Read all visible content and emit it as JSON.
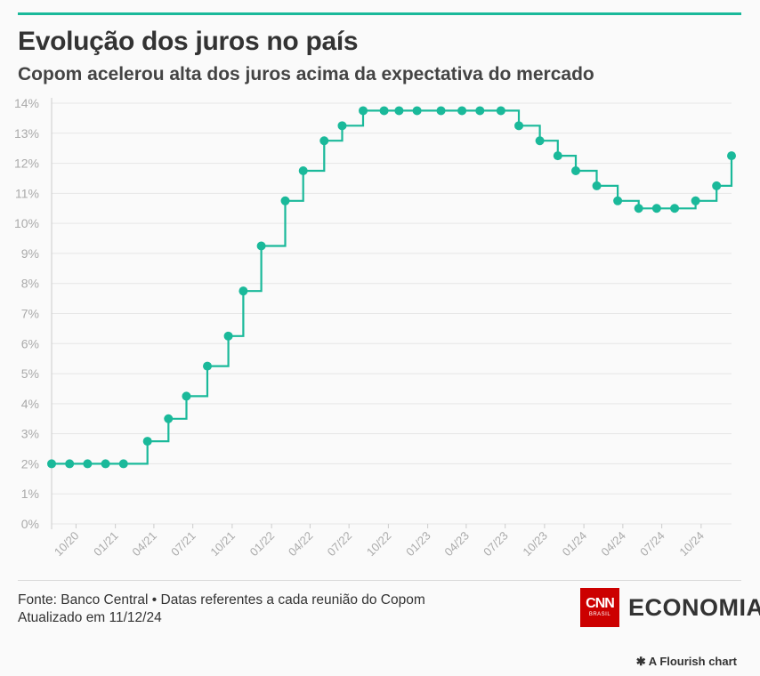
{
  "header": {
    "title": "Evolução dos juros no país",
    "subtitle": "Copom acelerou alta dos juros acima da expectativa do mercado"
  },
  "footer": {
    "source": "Fonte: Banco Central • Datas referentes a cada reunião do Copom",
    "updated": "Atualizado em 11/12/24",
    "brand_cnn": "CNN",
    "brand_cnn_sub": "BRASIL",
    "brand_name": "ECONOMIA",
    "flourish_label": "A Flourish chart"
  },
  "colors": {
    "line": "#1ab99a",
    "grid": "#e6e6e6",
    "axis_text": "#aaaaaa",
    "cnn_red": "#cc0000"
  },
  "chart_data": {
    "type": "line",
    "interpolation": "step-after",
    "x_axis": {
      "type": "date",
      "range": [
        "2020-08-05",
        "2024-12-11"
      ],
      "ticks": [
        {
          "date": "2020-10-01",
          "label": "10/20"
        },
        {
          "date": "2021-01-01",
          "label": "01/21"
        },
        {
          "date": "2021-04-01",
          "label": "04/21"
        },
        {
          "date": "2021-07-01",
          "label": "07/21"
        },
        {
          "date": "2021-10-01",
          "label": "10/21"
        },
        {
          "date": "2022-01-01",
          "label": "01/22"
        },
        {
          "date": "2022-04-01",
          "label": "04/22"
        },
        {
          "date": "2022-07-01",
          "label": "07/22"
        },
        {
          "date": "2022-10-01",
          "label": "10/22"
        },
        {
          "date": "2023-01-01",
          "label": "01/23"
        },
        {
          "date": "2023-04-01",
          "label": "04/23"
        },
        {
          "date": "2023-07-01",
          "label": "07/23"
        },
        {
          "date": "2023-10-01",
          "label": "10/23"
        },
        {
          "date": "2024-01-01",
          "label": "01/24"
        },
        {
          "date": "2024-04-01",
          "label": "04/24"
        },
        {
          "date": "2024-07-01",
          "label": "07/24"
        },
        {
          "date": "2024-10-01",
          "label": "10/24"
        }
      ]
    },
    "y_axis": {
      "range": [
        0,
        14
      ],
      "ticks": [
        0,
        1,
        2,
        3,
        4,
        5,
        6,
        7,
        8,
        9,
        10,
        11,
        12,
        13,
        14
      ],
      "tick_suffix": "%"
    },
    "grid": true,
    "legend": "none",
    "points": [
      {
        "x": "2020-08-05",
        "y": 2
      },
      {
        "x": "2020-09-16",
        "y": 2
      },
      {
        "x": "2020-10-28",
        "y": 2
      },
      {
        "x": "2020-12-09",
        "y": 2
      },
      {
        "x": "2021-01-20",
        "y": 2
      },
      {
        "x": "2021-03-17",
        "y": 2.75
      },
      {
        "x": "2021-05-05",
        "y": 3.5
      },
      {
        "x": "2021-06-16",
        "y": 4.25
      },
      {
        "x": "2021-08-04",
        "y": 5.25
      },
      {
        "x": "2021-09-22",
        "y": 6.25
      },
      {
        "x": "2021-10-27",
        "y": 7.75
      },
      {
        "x": "2021-12-08",
        "y": 9.25
      },
      {
        "x": "2022-02-02",
        "y": 10.75
      },
      {
        "x": "2022-03-16",
        "y": 11.75
      },
      {
        "x": "2022-05-04",
        "y": 12.75
      },
      {
        "x": "2022-06-15",
        "y": 13.25
      },
      {
        "x": "2022-08-03",
        "y": 13.75
      },
      {
        "x": "2022-09-21",
        "y": 13.75
      },
      {
        "x": "2022-10-26",
        "y": 13.75
      },
      {
        "x": "2022-12-07",
        "y": 13.75
      },
      {
        "x": "2023-02-01",
        "y": 13.75
      },
      {
        "x": "2023-03-22",
        "y": 13.75
      },
      {
        "x": "2023-05-03",
        "y": 13.75
      },
      {
        "x": "2023-06-21",
        "y": 13.75
      },
      {
        "x": "2023-08-02",
        "y": 13.25
      },
      {
        "x": "2023-09-20",
        "y": 12.75
      },
      {
        "x": "2023-11-01",
        "y": 12.25
      },
      {
        "x": "2023-12-13",
        "y": 11.75
      },
      {
        "x": "2024-01-31",
        "y": 11.25
      },
      {
        "x": "2024-03-20",
        "y": 10.75
      },
      {
        "x": "2024-05-08",
        "y": 10.5
      },
      {
        "x": "2024-06-19",
        "y": 10.5
      },
      {
        "x": "2024-07-31",
        "y": 10.5
      },
      {
        "x": "2024-09-18",
        "y": 10.75
      },
      {
        "x": "2024-11-06",
        "y": 11.25
      },
      {
        "x": "2024-12-11",
        "y": 12.25
      }
    ]
  }
}
